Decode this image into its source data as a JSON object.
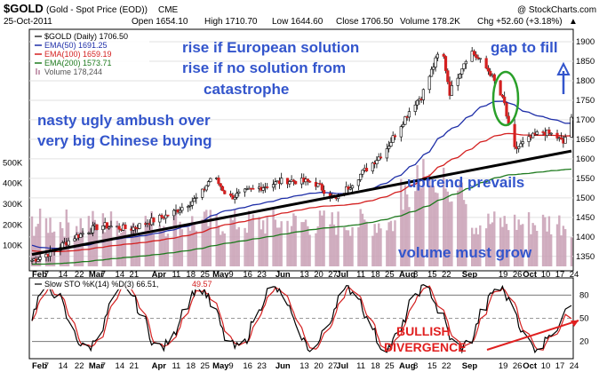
{
  "header": {
    "symbol": "$GOLD",
    "desc": "(Gold - Spot Price (EOD))",
    "exchange": "CME",
    "watermark": "@ StockCharts.com",
    "date": "25-Oct-2011",
    "open": "Open 1654.10",
    "high": "High 1710.70",
    "low": "Low 1644.60",
    "close": "Close 1706.50",
    "volume": "Volume 178.2K",
    "chg": "Chg +52.60 (+3.18%)",
    "chg_arrow": "▲"
  },
  "legend": {
    "price": "$GOLD (Daily) 1706.50",
    "ema50": "EMA(50) 1691.25",
    "ema100": "EMA(100) 1659.19",
    "ema200": "EMA(200) 1573.71",
    "volume": "Volume 178,244"
  },
  "sto_legend": {
    "label": "Slow STO %K(14) %D(3) 66.51,",
    "d_value": "49.57"
  },
  "annotations": {
    "rise1": "rise if European solution",
    "rise2": "rise if no solution from",
    "rise3": "catastrophe",
    "nasty1": "nasty ugly ambush over",
    "nasty2": "very big Chinese buying",
    "gap": "gap to fill",
    "uptrend": "uptrend prevails",
    "volume": "volume must grow",
    "bullish": "BULLISH",
    "divergence": "DIVERGENCE"
  },
  "colors": {
    "price": "#000000",
    "ema50": "#1f2fa8",
    "ema100": "#d42020",
    "ema200": "#1e7a1e",
    "volume_bar": "#c89fb4",
    "annotation": "#3355cc",
    "divergence": "#e02020",
    "sto_k": "#000000",
    "sto_d": "#d42020",
    "circle": "#2aa02a"
  },
  "price_axis": {
    "ticks": [
      "1900",
      "1850",
      "1800",
      "1750",
      "1700",
      "1650",
      "1600",
      "1550",
      "1500",
      "1450",
      "1400",
      "1350"
    ]
  },
  "volume_axis": {
    "ticks": [
      "500K",
      "400K",
      "300K",
      "200K",
      "100K"
    ]
  },
  "sto_axis": {
    "ticks": [
      "80",
      "50",
      "20"
    ]
  },
  "x_axis": {
    "labels": [
      "Feb",
      "7",
      "14",
      "22",
      "Mar",
      "7",
      "14",
      "21",
      "Apr",
      "11",
      "18",
      "25",
      "May",
      "9",
      "16",
      "23",
      "Jun",
      "13",
      "20",
      "27",
      "Jul",
      "11",
      "18",
      "25",
      "Aug",
      "8",
      "15",
      "22",
      "Sep",
      "19",
      "26",
      "Oct",
      "10",
      "17",
      "24"
    ]
  },
  "chart_data": {
    "type": "candlestick",
    "title": "$GOLD (Gold - Spot Price (EOD))",
    "last_date": "25-Oct-2011",
    "price_range": [
      1320,
      1925
    ],
    "anchors": [
      [
        "Feb 1",
        1340
      ],
      [
        "Feb 10",
        1360
      ],
      [
        "Feb 22",
        1400
      ],
      [
        "Mar 7",
        1430
      ],
      [
        "Mar 21",
        1420
      ],
      [
        "Apr 11",
        1460
      ],
      [
        "Apr 25",
        1505
      ],
      [
        "May 1",
        1560
      ],
      [
        "May 9",
        1500
      ],
      [
        "May 23",
        1525
      ],
      [
        "Jun 6",
        1545
      ],
      [
        "Jun 20",
        1540
      ],
      [
        "Jul 1",
        1495
      ],
      [
        "Jul 11",
        1550
      ],
      [
        "Jul 25",
        1620
      ],
      [
        "Aug 8",
        1740
      ],
      [
        "Aug 12",
        1760
      ],
      [
        "Aug 22",
        1890
      ],
      [
        "Aug 26",
        1770
      ],
      [
        "Sep 5",
        1880
      ],
      [
        "Sep 15",
        1820
      ],
      [
        "Sep 22",
        1740
      ],
      [
        "Sep 26",
        1620
      ],
      [
        "Oct 4",
        1650
      ],
      [
        "Oct 10",
        1670
      ],
      [
        "Oct 17",
        1660
      ],
      [
        "Oct 21",
        1640
      ],
      [
        "Oct 25",
        1706.5
      ]
    ],
    "ema50": {
      "start": 1380,
      "end": 1691.25
    },
    "ema100": {
      "start": 1365,
      "end": 1659.19
    },
    "ema200": {
      "start": 1330,
      "end": 1573.71
    },
    "trendline": {
      "from": [
        "Feb 1",
        1355
      ],
      "to": [
        "Oct 25",
        1620
      ]
    },
    "volume_range_k": [
      0,
      600
    ],
    "stochastic": {
      "k_last": 66.51,
      "d_last": 49.57,
      "range": [
        0,
        100
      ]
    }
  }
}
